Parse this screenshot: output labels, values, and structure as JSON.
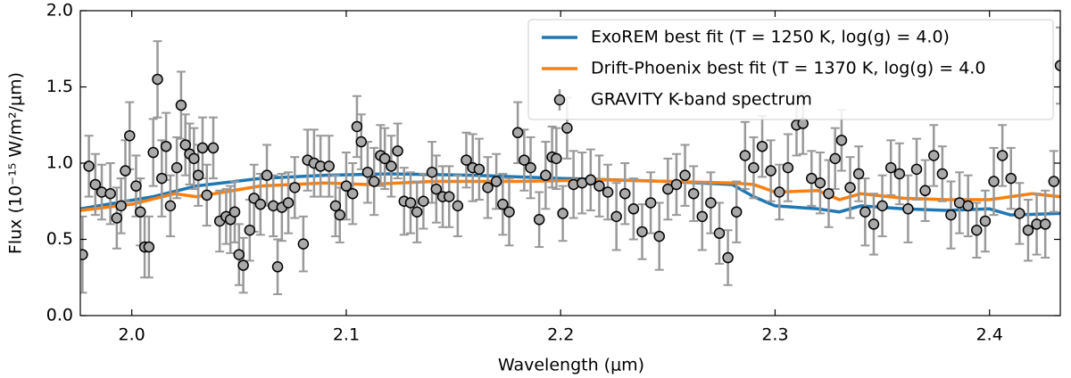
{
  "chart_data": {
    "type": "line",
    "xlabel": "Wavelength (μm)",
    "ylabel": "Flux (10⁻¹⁵ W/m²/μm)",
    "xlim": [
      1.976,
      2.433
    ],
    "ylim": [
      0,
      2
    ],
    "xticks": [
      {
        "value": 2,
        "label": "2.0"
      },
      2.1,
      2.2,
      2.3,
      2.4
    ],
    "yticks": [
      {
        "value": 0,
        "label": "0.0"
      },
      0.5,
      {
        "value": 1,
        "label": "1.0"
      },
      1.5,
      {
        "value": 2,
        "label": "2.0"
      }
    ],
    "legend": "upper right",
    "series": [
      {
        "name": "ExoREM best fit (T = 1250 K, log(g) = 4.0)",
        "color": "#1f77b4",
        "x": [
          1.976,
          2.01,
          2.03,
          2.06,
          2.09,
          2.12,
          2.16,
          2.2,
          2.25,
          2.28,
          2.29,
          2.3,
          2.32,
          2.33,
          2.34,
          2.36,
          2.38,
          2.4,
          2.41,
          2.433
        ],
        "values": [
          0.7,
          0.78,
          0.85,
          0.9,
          0.92,
          0.93,
          0.92,
          0.9,
          0.88,
          0.86,
          0.78,
          0.72,
          0.7,
          0.68,
          0.72,
          0.7,
          0.69,
          0.7,
          0.66,
          0.67
        ]
      },
      {
        "name": "Drift-Phoenix best fit (T = 1370 K, log(g) = 4.0",
        "color": "#ff7f0e",
        "x": [
          1.976,
          2.0,
          2.02,
          2.03,
          2.06,
          2.09,
          2.11,
          2.14,
          2.18,
          2.22,
          2.25,
          2.28,
          2.29,
          2.3,
          2.32,
          2.33,
          2.34,
          2.36,
          2.38,
          2.4,
          2.42,
          2.433
        ],
        "values": [
          0.69,
          0.73,
          0.8,
          0.78,
          0.85,
          0.87,
          0.86,
          0.88,
          0.88,
          0.89,
          0.88,
          0.87,
          0.86,
          0.81,
          0.82,
          0.76,
          0.8,
          0.77,
          0.76,
          0.76,
          0.8,
          0.78
        ]
      },
      {
        "name": "GRAVITY K-band spectrum",
        "type": "errorbar",
        "color": "#a9a9a9",
        "x": [
          1.977,
          1.98,
          1.983,
          1.986,
          1.99,
          1.993,
          1.995,
          1.997,
          1.999,
          2.002,
          2.004,
          2.006,
          2.008,
          2.01,
          2.012,
          2.014,
          2.016,
          2.018,
          2.021,
          2.023,
          2.025,
          2.027,
          2.029,
          2.031,
          2.033,
          2.035,
          2.038,
          2.041,
          2.044,
          2.046,
          2.048,
          2.05,
          2.052,
          2.055,
          2.057,
          2.06,
          2.063,
          2.066,
          2.068,
          2.07,
          2.073,
          2.076,
          2.08,
          2.082,
          2.085,
          2.088,
          2.092,
          2.095,
          2.097,
          2.1,
          2.103,
          2.105,
          2.107,
          2.11,
          2.113,
          2.116,
          2.118,
          2.121,
          2.124,
          2.127,
          2.13,
          2.133,
          2.136,
          2.14,
          2.142,
          2.145,
          2.148,
          2.152,
          2.156,
          2.159,
          2.162,
          2.166,
          2.17,
          2.173,
          2.176,
          2.18,
          2.183,
          2.186,
          2.19,
          2.193,
          2.196,
          2.198,
          2.201,
          2.203,
          2.206,
          2.21,
          2.214,
          2.218,
          2.222,
          2.226,
          2.23,
          2.234,
          2.238,
          2.242,
          2.246,
          2.25,
          2.254,
          2.258,
          2.262,
          2.266,
          2.27,
          2.274,
          2.278,
          2.282,
          2.286,
          2.29,
          2.294,
          2.298,
          2.302,
          2.306,
          2.31,
          2.313,
          2.317,
          2.321,
          2.325,
          2.328,
          2.331,
          2.335,
          2.339,
          2.342,
          2.346,
          2.35,
          2.354,
          2.358,
          2.362,
          2.366,
          2.37,
          2.374,
          2.378,
          2.382,
          2.386,
          2.39,
          2.394,
          2.398,
          2.402,
          2.406,
          2.41,
          2.414,
          2.418,
          2.422,
          2.426,
          2.43,
          2.433
        ],
        "values": [
          0.4,
          0.98,
          0.86,
          0.81,
          0.8,
          0.64,
          0.72,
          0.95,
          1.18,
          0.85,
          0.68,
          0.45,
          0.45,
          1.07,
          1.55,
          0.9,
          1.11,
          0.72,
          0.97,
          1.38,
          1.12,
          1.06,
          1.03,
          0.92,
          1.1,
          0.79,
          1.1,
          0.62,
          0.65,
          0.63,
          0.68,
          0.4,
          0.33,
          0.56,
          0.77,
          0.73,
          0.92,
          0.72,
          0.32,
          0.71,
          0.74,
          0.84,
          0.47,
          1.02,
          1.0,
          0.98,
          0.98,
          0.72,
          0.66,
          0.85,
          0.8,
          1.24,
          1.14,
          0.94,
          0.88,
          1.05,
          1.03,
          0.98,
          1.08,
          0.75,
          0.74,
          0.68,
          0.75,
          0.94,
          0.83,
          0.78,
          0.78,
          0.72,
          1.02,
          0.97,
          0.96,
          0.84,
          0.88,
          0.73,
          0.68,
          1.2,
          1.02,
          0.97,
          0.63,
          0.92,
          1.04,
          1.03,
          0.67,
          1.23,
          0.86,
          0.87,
          0.89,
          0.85,
          0.81,
          0.65,
          0.8,
          0.7,
          0.55,
          0.74,
          0.52,
          0.83,
          0.86,
          0.92,
          0.8,
          0.65,
          0.74,
          0.54,
          0.38,
          0.68,
          1.05,
          0.97,
          1.11,
          0.95,
          0.81,
          0.97,
          1.25,
          1.26,
          0.9,
          0.87,
          0.8,
          1.03,
          1.15,
          0.84,
          0.93,
          0.68,
          0.6,
          0.72,
          0.97,
          0.93,
          0.7,
          0.96,
          0.82,
          1.05,
          0.93,
          0.66,
          0.74,
          0.72,
          0.56,
          0.62,
          0.88,
          1.05,
          0.9,
          0.67,
          0.56,
          0.6,
          0.6,
          0.88,
          1.64
        ],
        "errors": [
          0.25,
          0.2,
          0.2,
          0.18,
          0.2,
          0.2,
          0.18,
          0.2,
          0.22,
          0.2,
          0.22,
          0.2,
          0.2,
          0.22,
          0.25,
          0.25,
          0.22,
          0.2,
          0.2,
          0.22,
          0.2,
          0.2,
          0.2,
          0.2,
          0.2,
          0.2,
          0.2,
          0.2,
          0.18,
          0.22,
          0.2,
          0.2,
          0.18,
          0.2,
          0.22,
          0.2,
          0.2,
          0.2,
          0.18,
          0.22,
          0.2,
          0.2,
          0.18,
          0.2,
          0.22,
          0.2,
          0.2,
          0.2,
          0.18,
          0.22,
          0.2,
          0.2,
          0.18,
          0.2,
          0.22,
          0.2,
          0.2,
          0.2,
          0.18,
          0.22,
          0.2,
          0.2,
          0.18,
          0.2,
          0.22,
          0.2,
          0.2,
          0.2,
          0.18,
          0.22,
          0.2,
          0.2,
          0.18,
          0.2,
          0.22,
          0.2,
          0.2,
          0.2,
          0.18,
          0.22,
          0.2,
          0.2,
          0.18,
          0.2,
          0.22,
          0.2,
          0.2,
          0.2,
          0.18,
          0.22,
          0.2,
          0.2,
          0.18,
          0.2,
          0.22,
          0.2,
          0.2,
          0.2,
          0.18,
          0.22,
          0.2,
          0.2,
          0.18,
          0.2,
          0.22,
          0.2,
          0.2,
          0.2,
          0.18,
          0.22,
          0.2,
          0.2,
          0.18,
          0.2,
          0.22,
          0.2,
          0.2,
          0.2,
          0.18,
          0.22,
          0.2,
          0.2,
          0.18,
          0.2,
          0.22,
          0.2,
          0.2,
          0.2,
          0.18,
          0.22,
          0.2,
          0.2,
          0.18,
          0.2,
          0.22,
          0.2,
          0.2,
          0.2,
          0.2,
          0.2,
          0.22,
          0.2,
          0.25
        ]
      }
    ]
  }
}
